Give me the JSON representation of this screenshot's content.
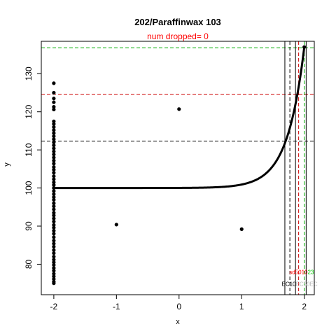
{
  "chart_data": {
    "type": "scatter",
    "title": "202/Paraffinwax 103",
    "subtitle": "num dropped= 0",
    "xlabel": "x",
    "ylabel": "y",
    "xlim": [
      -2.2,
      2.16
    ],
    "ylim": [
      72.0,
      138.5
    ],
    "x_ticks": [
      -2,
      -1,
      0,
      1,
      2
    ],
    "y_ticks": [
      80,
      90,
      100,
      110,
      120,
      130
    ],
    "colors": {
      "points": "#000000",
      "subtitle": "#ff0000",
      "ref_black": "#000000",
      "ref_red": "#cc0000",
      "ref_green": "#00aa00",
      "ann_red": "#ff0000",
      "ann_green": "#00cc00",
      "ann_faint": "#bbbbbb"
    },
    "points": {
      "x_neg2_y": [
        75.0,
        75.4,
        76.1,
        76.8,
        77.5,
        78.3,
        79.0,
        79.8,
        80.5,
        81.2,
        82.0,
        82.9,
        83.7,
        84.6,
        85.4,
        86.2,
        87.1,
        88.0,
        88.8,
        89.6,
        90.3,
        91.2,
        92.0,
        92.8,
        93.5,
        94.4,
        95.2,
        96.0,
        96.9,
        97.6,
        98.4,
        99.2,
        100.0,
        100.8,
        101.5,
        102.3,
        103.1,
        104.0,
        104.8,
        105.5,
        106.4,
        107.2,
        108.0,
        108.8,
        109.6,
        110.4,
        111.2,
        112.0,
        112.8,
        113.6,
        114.4,
        115.2,
        116.0,
        116.8,
        117.5,
        120.6,
        121.3,
        122.5,
        123.5,
        125.0,
        127.5
      ],
      "extra": [
        {
          "x": -1,
          "y": 90.4
        },
        {
          "x": 0,
          "y": 120.7
        },
        {
          "x": 1,
          "y": 89.2
        },
        {
          "x": 2,
          "y": 137.0
        }
      ]
    },
    "curve": {
      "baseline": 100.0,
      "x_start": -2.0,
      "x_end": 2.0,
      "y_end": 137.0,
      "rise_scale": 0.27
    },
    "hlines": [
      {
        "y": 112.3,
        "style": "ref_black"
      },
      {
        "y": 124.6,
        "style": "ref_red"
      },
      {
        "y": 136.8,
        "style": "ref_green"
      }
    ],
    "vlines": [
      {
        "x": 1.69,
        "style": "ref_black",
        "dashed": false
      },
      {
        "x": 1.77,
        "style": "ref_black",
        "dashed": true
      },
      {
        "x": 1.86,
        "style": "ref_black",
        "dashed": false
      },
      {
        "x": 1.91,
        "style": "ref_red",
        "dashed": true
      },
      {
        "x": 2.0,
        "style": "ref_green",
        "dashed": true
      },
      {
        "x": 2.03,
        "style": "ref_black",
        "dashed": false
      }
    ],
    "annotations": {
      "upper": {
        "y": 77.4,
        "parts": [
          {
            "text": "sd",
            "color": "ann_red"
          },
          {
            "text": "50",
            "color": "ann_red"
          },
          {
            "text": "10",
            "color": "ann_red"
          },
          {
            "text": "23",
            "color": "ann_green"
          }
        ]
      },
      "lower": {
        "y": 74.3,
        "parts": [
          {
            "text": "EC10",
            "color": "ref_black"
          },
          {
            "text": "EC50",
            "color": "ann_faint"
          },
          {
            "text": "EC",
            "color": "ann_faint"
          }
        ]
      }
    }
  }
}
